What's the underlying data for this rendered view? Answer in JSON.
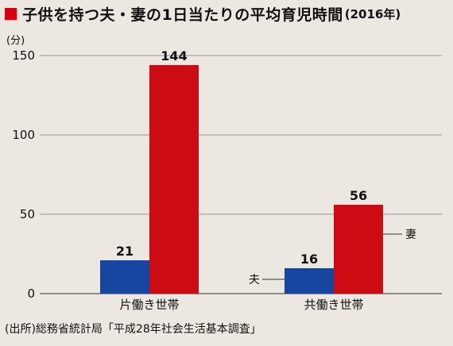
{
  "title": "子供を持つ夫・妻の1日当たりの平均育児時間",
  "title_year": "(2016年)",
  "source": "(出所)総務省統計局「平成28年社会生活基本調査」",
  "colors": {
    "husband": "#1646a0",
    "wife": "#cc0b12",
    "accent": "#d7000f",
    "grid": "#777777"
  },
  "chart_data": {
    "type": "bar",
    "unit_label": "(分)",
    "categories": [
      "片働き世帯",
      "共働き世帯"
    ],
    "series": [
      {
        "name": "夫",
        "values": [
          21,
          16
        ]
      },
      {
        "name": "妻",
        "values": [
          144,
          56
        ]
      }
    ],
    "ylim": [
      0,
      150
    ],
    "yticks": [
      0,
      50,
      100,
      150
    ],
    "grid": true,
    "legend_placement": "inline, beside the right group"
  }
}
